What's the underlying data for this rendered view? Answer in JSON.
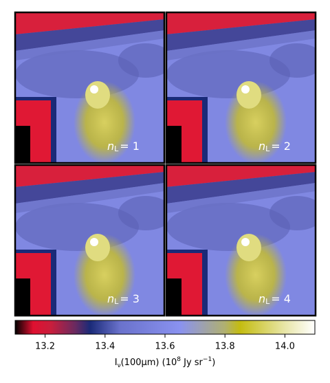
{
  "panels": [
    {
      "symbol": "n",
      "subscript": "L",
      "equals": "= 1"
    },
    {
      "symbol": "n",
      "subscript": "L",
      "equals": "= 2"
    },
    {
      "symbol": "n",
      "subscript": "L",
      "equals": "= 3"
    },
    {
      "symbol": "n",
      "subscript": "L",
      "equals": "= 4"
    }
  ],
  "colorbar": {
    "lim": [
      13.1,
      14.1
    ],
    "ticks": [
      13.2,
      13.4,
      13.6,
      13.8,
      {
        "value": 14.0,
        "label": "14.0"
      }
    ],
    "label": {
      "main": "I",
      "sub": "ν",
      "mid": "(100μm) (10",
      "exp": "8",
      "unit": " Jy sr",
      "unitexp": "−1",
      "end": ")"
    }
  }
}
